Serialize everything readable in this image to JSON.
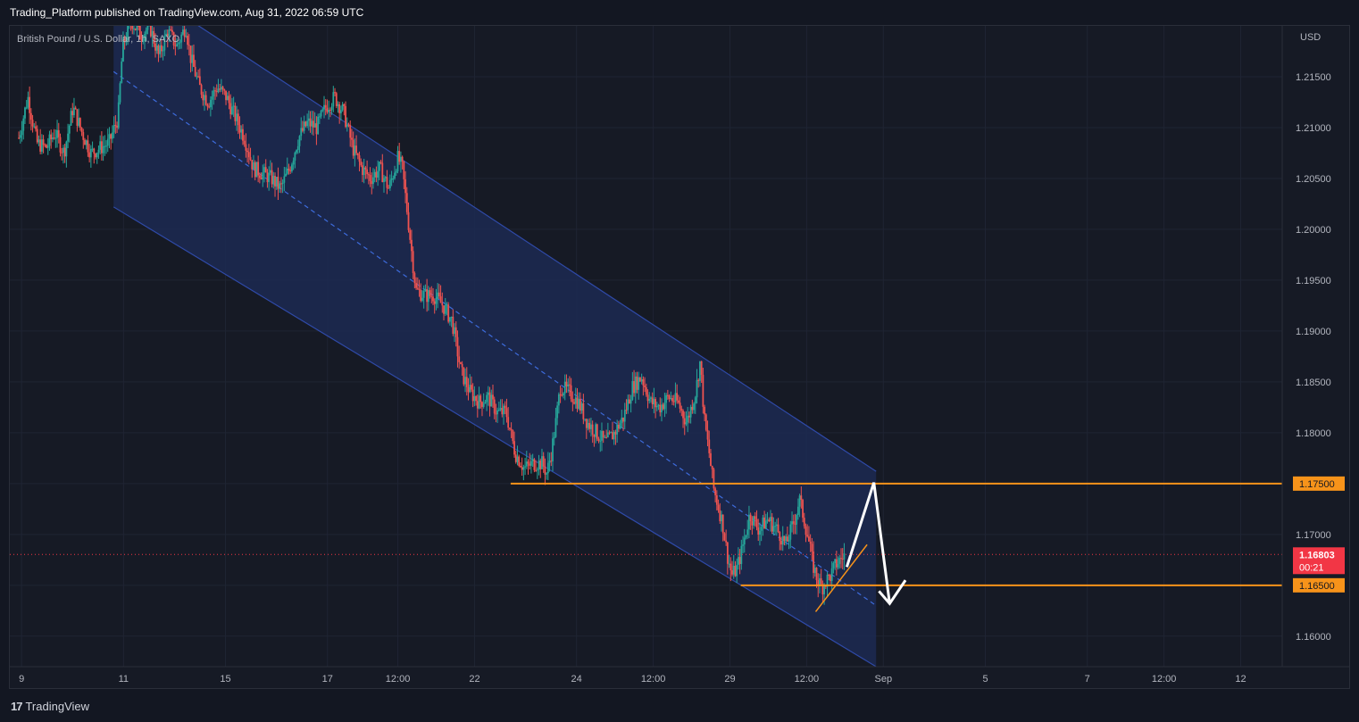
{
  "header": {
    "published_by": "Trading_Platform published on TradingView.com, Aug 31, 2022 06:59 UTC"
  },
  "footer": {
    "brand": "TradingView",
    "logo_mark": "17"
  },
  "colors": {
    "background": "#161a25",
    "grid": "#1f2433",
    "up": "#26a69a",
    "down": "#ef5350",
    "channel_fill": "#1c2a52",
    "channel_line": "#2f4aa8",
    "level": "#f7931a",
    "arrow": "#ffffff",
    "price_badge": "#f23645"
  },
  "chart_data": {
    "type": "candlestick",
    "title": "British Pound / U.S. Dollar, 1h, SAXO",
    "currency": "USD",
    "ylim": [
      1.157,
      1.22
    ],
    "y_ticks": [
      "1.21500",
      "1.21000",
      "1.20500",
      "1.20000",
      "1.19500",
      "1.19000",
      "1.18500",
      "1.18000",
      "1.17500",
      "1.17000",
      "1.16500",
      "1.16000"
    ],
    "x_tick_labels": [
      {
        "label": "9",
        "t": 0.6
      },
      {
        "label": "11",
        "t": 23.2
      },
      {
        "label": "15",
        "t": 45.8
      },
      {
        "label": "17",
        "t": 68.4
      },
      {
        "label": "12:00",
        "t": 84.0
      },
      {
        "label": "22",
        "t": 101.0
      },
      {
        "label": "24",
        "t": 123.6
      },
      {
        "label": "12:00",
        "t": 140.6
      },
      {
        "label": "29",
        "t": 157.6
      },
      {
        "label": "12:00",
        "t": 174.6
      },
      {
        "label": "Sep",
        "t": 191.6
      },
      {
        "label": "5",
        "t": 214.2
      },
      {
        "label": "7",
        "t": 236.8
      },
      {
        "label": "12:00",
        "t": 253.8
      },
      {
        "label": "12",
        "t": 270.8
      }
    ],
    "grid": true,
    "last_price": {
      "value": "1.16803",
      "countdown": "00:21"
    },
    "price_path": [
      [
        0,
        1.209
      ],
      [
        2,
        1.213
      ],
      [
        4,
        1.2085
      ],
      [
        6,
        1.208
      ],
      [
        8,
        1.2095
      ],
      [
        10,
        1.2075
      ],
      [
        12,
        1.212
      ],
      [
        14,
        1.2095
      ],
      [
        16,
        1.2075
      ],
      [
        18,
        1.208
      ],
      [
        20,
        1.2085
      ],
      [
        22,
        1.211
      ],
      [
        23,
        1.218
      ],
      [
        25,
        1.2205
      ],
      [
        27,
        1.219
      ],
      [
        29,
        1.22
      ],
      [
        31,
        1.217
      ],
      [
        33,
        1.2195
      ],
      [
        35,
        1.218
      ],
      [
        37,
        1.22
      ],
      [
        38,
        1.217
      ],
      [
        40,
        1.214
      ],
      [
        42,
        1.2125
      ],
      [
        44,
        1.214
      ],
      [
        46,
        1.213
      ],
      [
        48,
        1.211
      ],
      [
        50,
        1.209
      ],
      [
        52,
        1.206
      ],
      [
        54,
        1.2055
      ],
      [
        56,
        1.205
      ],
      [
        58,
        1.204
      ],
      [
        60,
        1.206
      ],
      [
        62,
        1.209
      ],
      [
        64,
        1.2105
      ],
      [
        66,
        1.21
      ],
      [
        68,
        1.212
      ],
      [
        70,
        1.213
      ],
      [
        72,
        1.2115
      ],
      [
        74,
        1.208
      ],
      [
        76,
        1.206
      ],
      [
        78,
        1.205
      ],
      [
        80,
        1.206
      ],
      [
        82,
        1.204
      ],
      [
        84,
        1.207
      ],
      [
        85,
        1.206
      ],
      [
        86,
        1.202
      ],
      [
        87,
        1.198
      ],
      [
        88,
        1.194
      ],
      [
        90,
        1.1935
      ],
      [
        92,
        1.1935
      ],
      [
        94,
        1.1925
      ],
      [
        96,
        1.191
      ],
      [
        98,
        1.186
      ],
      [
        100,
        1.184
      ],
      [
        102,
        1.183
      ],
      [
        104,
        1.1835
      ],
      [
        106,
        1.182
      ],
      [
        108,
        1.182
      ],
      [
        110,
        1.178
      ],
      [
        112,
        1.1765
      ],
      [
        114,
        1.177
      ],
      [
        116,
        1.177
      ],
      [
        117,
        1.176
      ],
      [
        118,
        1.178
      ],
      [
        119,
        1.181
      ],
      [
        120,
        1.1845
      ],
      [
        122,
        1.184
      ],
      [
        124,
        1.183
      ],
      [
        126,
        1.181
      ],
      [
        128,
        1.18
      ],
      [
        130,
        1.179
      ],
      [
        132,
        1.18
      ],
      [
        134,
        1.1815
      ],
      [
        136,
        1.1845
      ],
      [
        138,
        1.1855
      ],
      [
        140,
        1.183
      ],
      [
        142,
        1.1825
      ],
      [
        144,
        1.1835
      ],
      [
        146,
        1.183
      ],
      [
        148,
        1.181
      ],
      [
        150,
        1.184
      ],
      [
        151,
        1.187
      ],
      [
        152,
        1.181
      ],
      [
        153,
        1.178
      ],
      [
        154,
        1.1745
      ],
      [
        156,
        1.171
      ],
      [
        157,
        1.168
      ],
      [
        158,
        1.166
      ],
      [
        159,
        1.1665
      ],
      [
        160,
        1.168
      ],
      [
        162,
        1.172
      ],
      [
        164,
        1.1705
      ],
      [
        166,
        1.1715
      ],
      [
        168,
        1.1705
      ],
      [
        170,
        1.169
      ],
      [
        172,
        1.1715
      ],
      [
        173,
        1.1735
      ],
      [
        174,
        1.1715
      ],
      [
        175,
        1.1695
      ],
      [
        176,
        1.167
      ],
      [
        177,
        1.1655
      ],
      [
        178,
        1.1648
      ],
      [
        179,
        1.1655
      ],
      [
        180,
        1.166
      ],
      [
        181,
        1.167
      ],
      [
        182,
        1.1675
      ],
      [
        183,
        1.168
      ]
    ],
    "annotations": {
      "channel": {
        "t_start": 21.0,
        "t_end": 190.0,
        "upper_start": 1.2255,
        "upper_end": 1.1762,
        "mid_start": 1.2155,
        "mid_end": 1.163,
        "lower_start": 1.2022,
        "lower_end": 1.157
      },
      "levels": [
        {
          "price": "1.17500",
          "value": 1.175,
          "t_start": 109.0
        },
        {
          "price": "1.16500",
          "value": 1.165,
          "t_start": 160.0
        }
      ],
      "trendline": [
        [
          176.6,
          1.1624
        ],
        [
          188.0,
          1.169
        ]
      ],
      "projection": [
        [
          183.5,
          1.1668
        ],
        [
          189.5,
          1.1751
        ],
        [
          193.0,
          1.1632
        ],
        [
          196.5,
          1.1655
        ]
      ]
    }
  }
}
